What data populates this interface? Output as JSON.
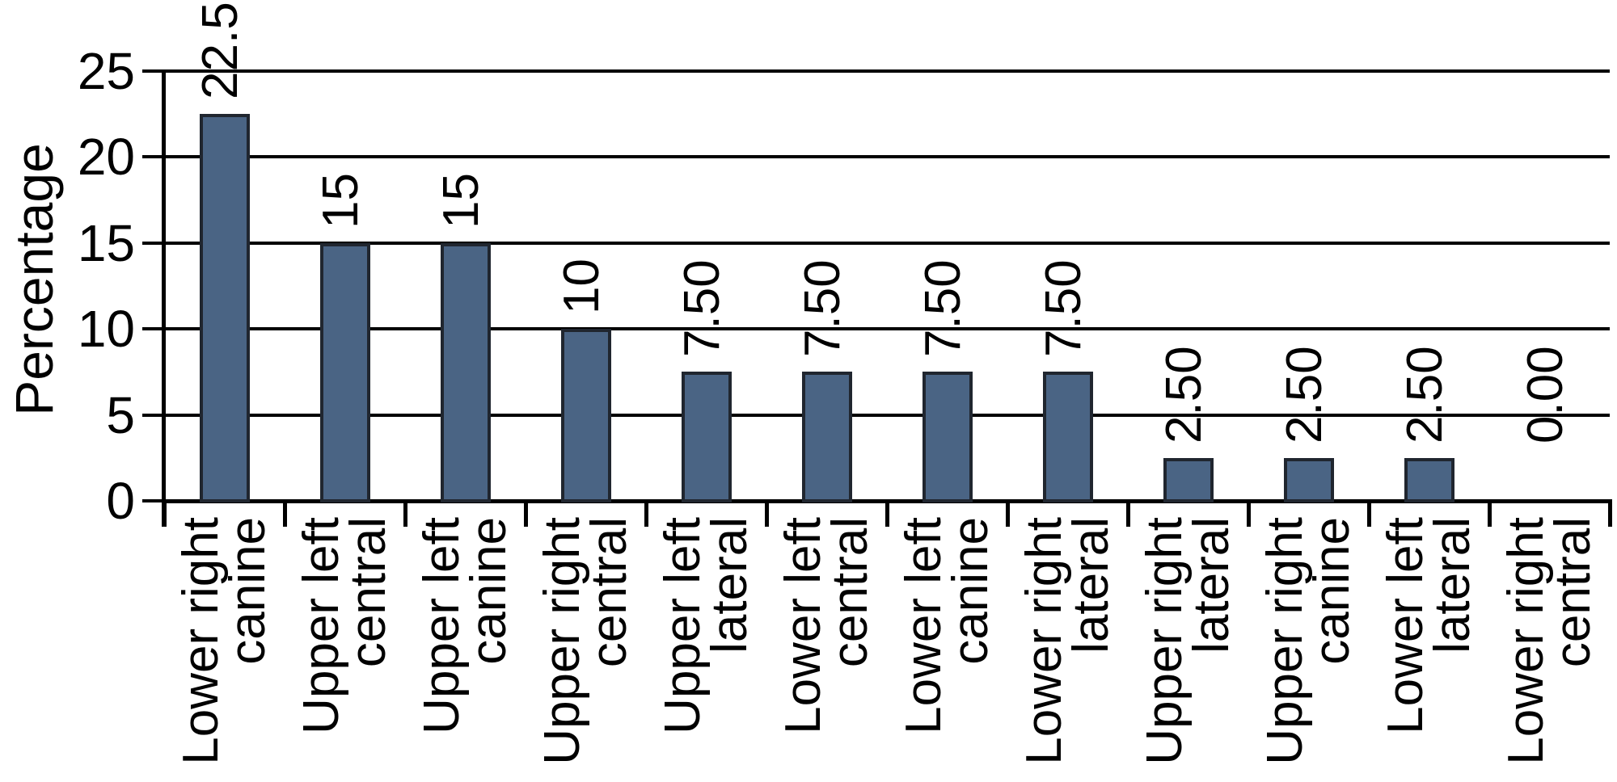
{
  "chart_data": {
    "type": "bar",
    "title": "",
    "ylabel": "Percentage",
    "xlabel": "",
    "ylim": [
      0,
      25
    ],
    "yticks": [
      0,
      5,
      10,
      15,
      20,
      25
    ],
    "grid": true,
    "legend": false,
    "categories": [
      [
        "Lower right",
        "canine"
      ],
      [
        "Upper left",
        "central"
      ],
      [
        "Upper left",
        "canine"
      ],
      [
        "Upper right",
        "central"
      ],
      [
        "Upper left",
        "lateral"
      ],
      [
        "Lower left",
        "central"
      ],
      [
        "Lower left",
        "canine"
      ],
      [
        "Lower right",
        "lateral"
      ],
      [
        "Upper right",
        "lateral"
      ],
      [
        "Upper right",
        "canine"
      ],
      [
        "Lower left",
        "lateral"
      ],
      [
        "Lower right",
        "central"
      ]
    ],
    "values": [
      22.5,
      15,
      15,
      10,
      7.5,
      7.5,
      7.5,
      7.5,
      2.5,
      2.5,
      2.5,
      0
    ],
    "value_labels": [
      "22.5",
      "15",
      "15",
      "10",
      "7.50",
      "7.50",
      "7.50",
      "7.50",
      "2.50",
      "2.50",
      "2.50",
      "0.00"
    ],
    "colors": {
      "bar_fill": "#4A6484",
      "bar_border": "#20262F",
      "axis": "#000000",
      "text": "#000000",
      "background": "#FFFFFF"
    }
  }
}
